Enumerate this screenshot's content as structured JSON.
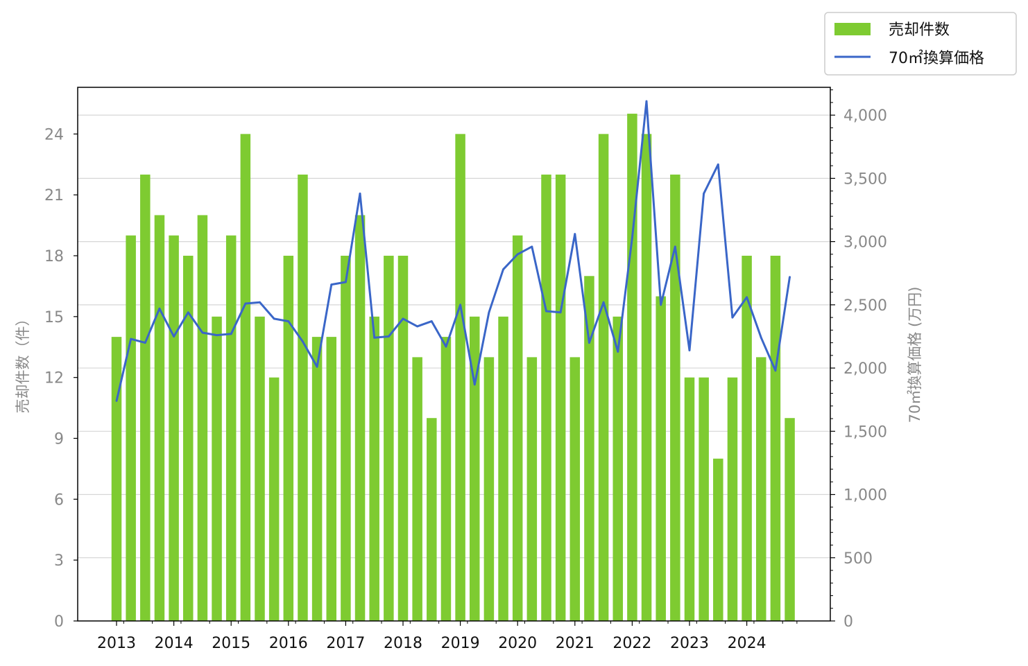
{
  "chart_data": {
    "type": "bar",
    "x_tick_labels": [
      "2013",
      "2014",
      "2015",
      "2016",
      "2017",
      "2018",
      "2019",
      "2020",
      "2021",
      "2022",
      "2023",
      "2024"
    ],
    "left_axis": {
      "label": "売却件数（件）",
      "ticks": [
        0,
        3,
        6,
        9,
        12,
        15,
        18,
        21,
        24
      ],
      "ylim": [
        0,
        26.3
      ]
    },
    "right_axis": {
      "label": "70㎡換算価格 (万円)",
      "ticks": [
        0,
        500,
        1000,
        1500,
        2000,
        2500,
        3000,
        3500,
        4000
      ],
      "tick_labels": [
        "0",
        "500",
        "1,000",
        "1,500",
        "2,000",
        "2,500",
        "3,000",
        "3,500",
        "4,000"
      ],
      "ylim": [
        0,
        4220
      ]
    },
    "grid": "horizontal (right axis)",
    "legend_position": "top-right outside",
    "series": [
      {
        "name": "売却件数",
        "type": "bar",
        "axis": "left",
        "color": "#7ecb31",
        "values": [
          14,
          19,
          22,
          20,
          19,
          18,
          20,
          15,
          19,
          24,
          15,
          12,
          18,
          22,
          14,
          14,
          18,
          20,
          15,
          18,
          18,
          13,
          10,
          14,
          24,
          15,
          13,
          15,
          19,
          13,
          22,
          22,
          13,
          17,
          24,
          15,
          25,
          24,
          16,
          22,
          12,
          12,
          8,
          12,
          18,
          13,
          18,
          10
        ]
      },
      {
        "name": "70㎡換算価格",
        "type": "line",
        "axis": "right",
        "color": "#3a66c8",
        "values": [
          1740,
          2230,
          2200,
          2470,
          2250,
          2440,
          2280,
          2260,
          2270,
          2510,
          2520,
          2390,
          2370,
          2210,
          2010,
          2660,
          2680,
          3380,
          2240,
          2250,
          2390,
          2330,
          2370,
          2170,
          2500,
          1870,
          2440,
          2780,
          2900,
          2960,
          2450,
          2440,
          3060,
          2200,
          2520,
          2130,
          3030,
          4110,
          2500,
          2960,
          2140,
          3380,
          3610,
          2400,
          2560,
          2240,
          1980,
          2720
        ]
      }
    ]
  }
}
